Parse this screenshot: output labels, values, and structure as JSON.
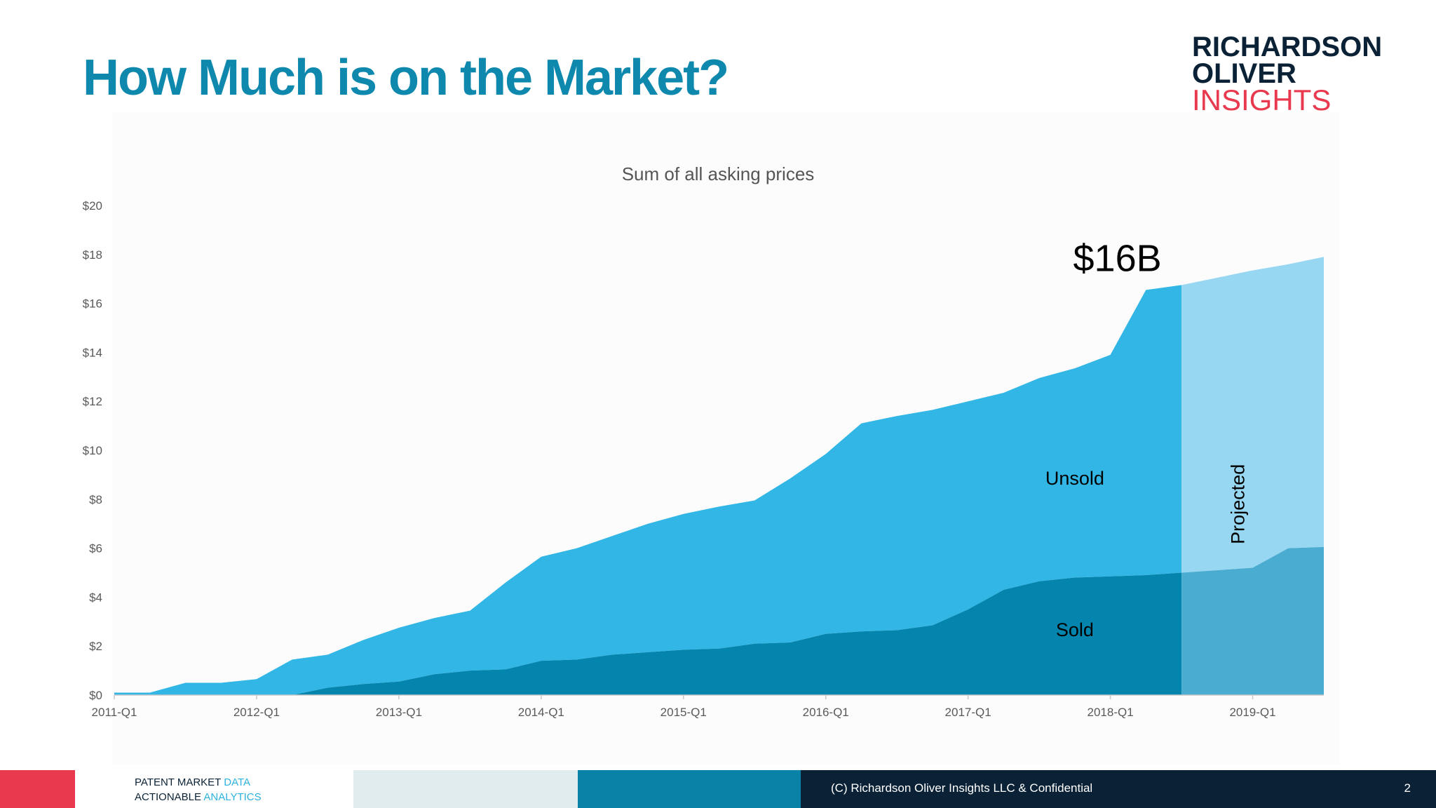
{
  "slide": {
    "title": "How Much is on the Market?",
    "page_number": "2"
  },
  "logo": {
    "line1": "RICHARDSON",
    "line2": "OLIVER",
    "line3": "INSIGHTS"
  },
  "footer": {
    "tagline_1a": "PATENT MARKET ",
    "tagline_1b": "DATA",
    "tagline_2a": "ACTIONABLE ",
    "tagline_2b": "ANALYTICS",
    "copyright": "(C) Richardson Oliver Insights LLC & Confidential"
  },
  "colors": {
    "title": "#0e88ad",
    "unsold": "#31b6e6",
    "sold": "#0385ad",
    "projected_unsold": "#98d7f1",
    "projected_sold": "#4aacd0",
    "logo_navy": "#0b2236",
    "logo_red": "#e8394f"
  },
  "chart_data": {
    "type": "area",
    "stacked": true,
    "title": "Sum of all asking prices",
    "y_prefix": "$",
    "ylim": [
      0,
      20
    ],
    "y_ticks": [
      0,
      2,
      4,
      6,
      8,
      10,
      12,
      14,
      16,
      18,
      20
    ],
    "y_tick_labels": [
      "$0",
      "$2",
      "$4",
      "$6",
      "$8",
      "$10",
      "$12",
      "$14",
      "$16",
      "$18",
      "$20"
    ],
    "x_tick_labels": [
      "2011-Q1",
      "2012-Q1",
      "2013-Q1",
      "2014-Q1",
      "2015-Q1",
      "2016-Q1",
      "2017-Q1",
      "2018-Q1",
      "2019-Q1"
    ],
    "categories": [
      "2011-Q1",
      "2011-Q2",
      "2011-Q3",
      "2011-Q4",
      "2012-Q1",
      "2012-Q2",
      "2012-Q3",
      "2012-Q4",
      "2013-Q1",
      "2013-Q2",
      "2013-Q3",
      "2013-Q4",
      "2014-Q1",
      "2014-Q2",
      "2014-Q3",
      "2014-Q4",
      "2015-Q1",
      "2015-Q2",
      "2015-Q3",
      "2015-Q4",
      "2016-Q1",
      "2016-Q2",
      "2016-Q3",
      "2016-Q4",
      "2017-Q1",
      "2017-Q2",
      "2017-Q3",
      "2017-Q4",
      "2018-Q1",
      "2018-Q2",
      "2018-Q3",
      "2018-Q4",
      "2019-Q1",
      "2019-Q2",
      "2019-Q3"
    ],
    "series": [
      {
        "name": "Sold",
        "values": [
          0,
          0,
          0,
          0,
          0,
          0,
          0.3,
          0.45,
          0.55,
          0.85,
          1.0,
          1.05,
          1.4,
          1.45,
          1.65,
          1.75,
          1.85,
          1.9,
          2.1,
          2.15,
          2.5,
          2.6,
          2.65,
          2.85,
          3.5,
          4.3,
          4.65,
          4.8,
          4.85,
          4.9,
          5.0,
          5.1,
          5.2,
          6.0,
          6.05
        ]
      },
      {
        "name": "Unsold",
        "values": [
          0.1,
          0.1,
          0.5,
          0.5,
          0.65,
          1.45,
          1.35,
          1.8,
          2.2,
          2.3,
          2.45,
          3.55,
          4.25,
          4.55,
          4.85,
          5.25,
          5.55,
          5.8,
          5.85,
          6.7,
          7.35,
          8.5,
          8.75,
          8.8,
          8.5,
          8.05,
          8.3,
          8.55,
          9.05,
          11.65,
          11.75,
          11.95,
          12.15,
          11.6,
          11.85
        ]
      }
    ],
    "projected_from_category": "2018-Q3",
    "annotations": {
      "total": "$16B",
      "unsold_label": "Unsold",
      "sold_label": "Sold",
      "projected_label": "Projected"
    }
  }
}
